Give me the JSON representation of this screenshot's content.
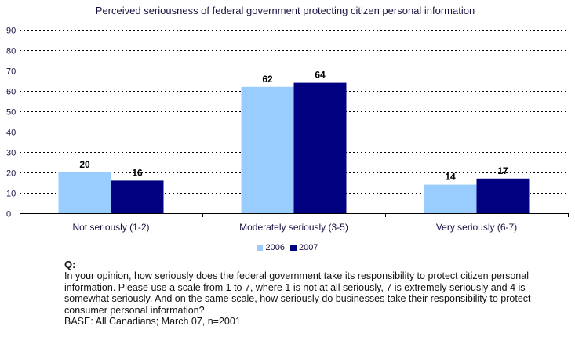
{
  "chart_data": {
    "type": "bar",
    "title": "Perceived seriousness of federal government protecting citizen personal information",
    "xlabel": "",
    "ylabel": "",
    "categories": [
      "Not seriously (1-2)",
      "Moderately seriously (3-5)",
      "Very seriously (6-7)"
    ],
    "series": [
      {
        "name": "2006",
        "color": "#99CCFF",
        "values": [
          20,
          62,
          14
        ]
      },
      {
        "name": "2007",
        "color": "#000080",
        "values": [
          16,
          64,
          17
        ]
      }
    ],
    "ylim": [
      0,
      90
    ],
    "yticks": [
      0,
      10,
      20,
      30,
      40,
      50,
      60,
      70,
      80,
      90
    ],
    "grid": true,
    "legend_position": "bottom-center",
    "data_labels": true
  },
  "note": {
    "q_label": "Q:",
    "question": "In your opinion, how seriously does the federal government take its responsibility to protect citizen personal information. Please use a scale from 1 to 7, where 1 is not at all seriously, 7 is extremely seriously and 4 is somewhat seriously.  And on the same scale, how seriously do businesses take their responsibility to protect consumer personal information?",
    "base": "BASE:  All Canadians; March 07, n=2001"
  }
}
